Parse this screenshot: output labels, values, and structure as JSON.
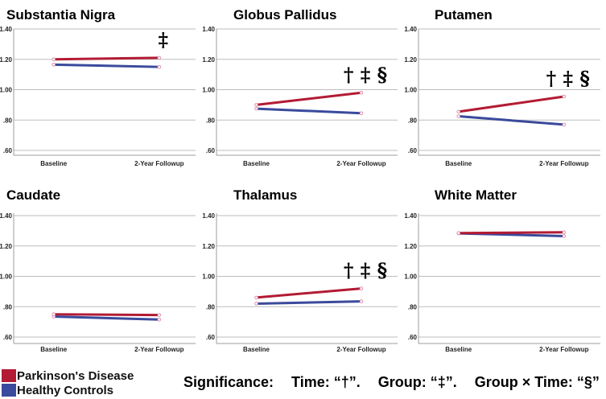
{
  "colors": {
    "pd": "#b31b34",
    "hc": "#3a4a9c",
    "grid": "#bdbdbd",
    "marker": "#e08fb0"
  },
  "chart_data": [
    {
      "type": "line",
      "title": "Substantia Nigra",
      "categories": [
        "Baseline",
        "2-Year Followup"
      ],
      "yticks": [
        ".60",
        ".80",
        "1.00",
        "1.20",
        "1.40"
      ],
      "ylim": [
        0.55,
        1.45
      ],
      "series": [
        {
          "name": "Parkinson's Disease",
          "values": [
            1.2,
            1.21
          ]
        },
        {
          "name": "Healthy Controls",
          "values": [
            1.165,
            1.15
          ]
        }
      ],
      "significance": "‡"
    },
    {
      "type": "line",
      "title": "Globus Pallidus",
      "categories": [
        "Baseline",
        "2-Year Followup"
      ],
      "yticks": [
        ".60",
        ".80",
        "1.00",
        "1.20",
        "1.40"
      ],
      "ylim": [
        0.55,
        1.45
      ],
      "series": [
        {
          "name": "Parkinson's Disease",
          "values": [
            0.9,
            0.98
          ]
        },
        {
          "name": "Healthy Controls",
          "values": [
            0.875,
            0.845
          ]
        }
      ],
      "significance": "† ‡ §"
    },
    {
      "type": "line",
      "title": "Putamen",
      "categories": [
        "Baseline",
        "2-Year Followup"
      ],
      "yticks": [
        ".60",
        ".80",
        "1.00",
        "1.20",
        "1.40"
      ],
      "ylim": [
        0.55,
        1.45
      ],
      "series": [
        {
          "name": "Parkinson's Disease",
          "values": [
            0.855,
            0.955
          ]
        },
        {
          "name": "Healthy Controls",
          "values": [
            0.825,
            0.77
          ]
        }
      ],
      "significance": "† ‡ §"
    },
    {
      "type": "line",
      "title": "Caudate",
      "categories": [
        "Baseline",
        "2-Year Followup"
      ],
      "yticks": [
        ".60",
        ".80",
        "1.00",
        "1.20",
        "1.40"
      ],
      "ylim": [
        0.55,
        1.45
      ],
      "series": [
        {
          "name": "Parkinson's Disease",
          "values": [
            0.75,
            0.745
          ]
        },
        {
          "name": "Healthy Controls",
          "values": [
            0.735,
            0.715
          ]
        }
      ],
      "significance": ""
    },
    {
      "type": "line",
      "title": "Thalamus",
      "categories": [
        "Baseline",
        "2-Year Followup"
      ],
      "yticks": [
        ".60",
        ".80",
        "1.00",
        "1.20",
        "1.40"
      ],
      "ylim": [
        0.55,
        1.45
      ],
      "series": [
        {
          "name": "Parkinson's Disease",
          "values": [
            0.86,
            0.92
          ]
        },
        {
          "name": "Healthy Controls",
          "values": [
            0.82,
            0.835
          ]
        }
      ],
      "significance": "† ‡ §"
    },
    {
      "type": "line",
      "title": "White Matter",
      "categories": [
        "Baseline",
        "2-Year Followup"
      ],
      "yticks": [
        ".60",
        ".80",
        "1.00",
        "1.20",
        "1.40"
      ],
      "ylim": [
        0.55,
        1.45
      ],
      "series": [
        {
          "name": "Parkinson's Disease",
          "values": [
            1.285,
            1.29
          ]
        },
        {
          "name": "Healthy Controls",
          "values": [
            1.283,
            1.265
          ]
        }
      ],
      "significance": ""
    }
  ],
  "legend": {
    "pd_label": "Parkinson's Disease",
    "hc_label": "Healthy Controls"
  },
  "significance_note": {
    "label": "Significance:",
    "time": "Time: “†”.",
    "group": "Group: “‡”.",
    "interaction": "Group × Time: “§”"
  }
}
